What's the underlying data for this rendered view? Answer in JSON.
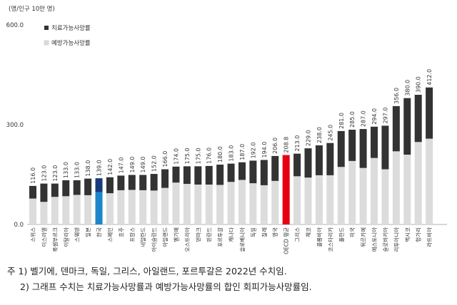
{
  "chart_data": {
    "type": "bar",
    "stacked": true,
    "unit_label": "(명/인구 10만 명)",
    "ylim": [
      0,
      600
    ],
    "yticks": [
      "0.0",
      "300.0",
      "600.0"
    ],
    "grid": false,
    "legend_position": "top-left",
    "colors": {
      "treatable": "#333333",
      "preventable": "#dcdcdc",
      "korea_treatable": "#1a3b7a",
      "korea_preventable": "#1d86c9",
      "oecd_highlight": "#e60012"
    },
    "series": [
      {
        "name": "치료가능사망률",
        "key": "treatable"
      },
      {
        "name": "예방가능사망률",
        "key": "preventable"
      }
    ],
    "categories": [
      "스위스",
      "이스라엘",
      "룩셈부르크",
      "이탈리아",
      "스웨덴",
      "일본",
      "한국",
      "스페인",
      "호주",
      "프랑스",
      "네덜란드",
      "아이슬란드",
      "아일랜드",
      "벨기에",
      "오스트리아",
      "덴마크",
      "핀란드",
      "포르투갈",
      "캐나다",
      "슬로베니아",
      "독일",
      "칠레",
      "영국",
      "OECD 평균",
      "그리스",
      "체코",
      "콜롬비아",
      "코스타리카",
      "폴란드",
      "미국",
      "튀르키예",
      "에스토니아",
      "슬로바키아",
      "리투아니아",
      "멕시코",
      "헝가리",
      "라트비아"
    ],
    "totals": [
      116.0,
      123.0,
      123.0,
      133.0,
      133.0,
      138.0,
      139.0,
      142.0,
      147.0,
      149.0,
      149.0,
      152.0,
      166.0,
      174.0,
      175.0,
      175.0,
      176.0,
      180.0,
      183.0,
      187.0,
      192.0,
      194.0,
      206.0,
      208.8,
      213.0,
      229.0,
      238.0,
      245.0,
      281.0,
      285.0,
      287.0,
      294.0,
      297.0,
      356.0,
      380.0,
      390.0,
      412.0
    ],
    "total_labels": [
      "116.0",
      "123.0",
      "123.0",
      "133.0",
      "133.0",
      "138.0",
      "139.0",
      "142.0",
      "147.0",
      "149.0",
      "149.0",
      "152.0",
      "166.0",
      "174.0",
      "175.0",
      "175.0",
      "176.0",
      "180.0",
      "183.0",
      "187.0",
      "192.0",
      "194.0",
      "206.0",
      "208.8",
      "213.0",
      "229.0",
      "238.0",
      "245.0",
      "281.0",
      "285.0",
      "287.0",
      "294.0",
      "297.0",
      "356.0",
      "380.0",
      "390.0",
      "412.0"
    ],
    "treatable": [
      38,
      55,
      40,
      48,
      44,
      50,
      42,
      48,
      44,
      45,
      46,
      50,
      56,
      48,
      53,
      55,
      56,
      61,
      55,
      53,
      68,
      76,
      75,
      72,
      68,
      88,
      90,
      97,
      108,
      94,
      117,
      94,
      131,
      136,
      170,
      142,
      154
    ],
    "preventable": [
      78,
      68,
      83,
      85,
      89,
      88,
      97,
      94,
      103,
      104,
      103,
      102,
      110,
      126,
      122,
      120,
      120,
      119,
      128,
      134,
      124,
      118,
      131,
      136.8,
      145,
      141,
      148,
      148,
      173,
      191,
      170,
      200,
      166,
      220,
      210,
      248,
      258
    ],
    "highlight": {
      "한국": "korea",
      "OECD 평균": "oecd"
    }
  },
  "notes": [
    "주 1) 벨기에, 덴마크, 독일, 그리스, 아일랜드, 포르투갈은 2022년 수치임.",
    "2) 그래프 수치는 치료가능사망률과 예방가능사망률의 합인 회피가능사망률임."
  ]
}
